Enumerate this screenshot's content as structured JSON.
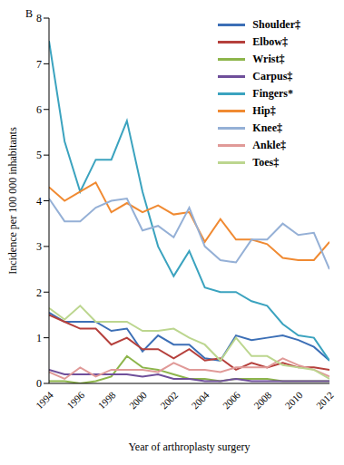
{
  "chart_data": {
    "type": "line",
    "title": "B",
    "x_label": "Year of arthroplasty surgery",
    "y_label": "Incidence per 100 000 inhabitants",
    "x": [
      1994,
      1995,
      1996,
      1997,
      1998,
      1999,
      2000,
      2001,
      2002,
      2003,
      2004,
      2005,
      2006,
      2007,
      2008,
      2009,
      2010,
      2011,
      2012
    ],
    "xlim": [
      1994,
      2012
    ],
    "xticks": [
      1994,
      1996,
      1998,
      2000,
      2002,
      2004,
      2006,
      2008,
      2010,
      2012
    ],
    "ylim": [
      0,
      8
    ],
    "yticks": [
      0,
      1,
      2,
      3,
      4,
      5,
      6,
      7,
      8
    ],
    "grid": false,
    "legend": "top-right",
    "series": [
      {
        "name": "Shoulder‡",
        "color": "#3c6fb6",
        "values": [
          1.55,
          1.35,
          1.35,
          1.35,
          1.15,
          1.2,
          0.7,
          1.05,
          0.85,
          0.85,
          0.55,
          0.5,
          1.05,
          0.95,
          1.0,
          1.05,
          0.95,
          0.8,
          0.5
        ]
      },
      {
        "name": "Elbow‡",
        "color": "#b5403c",
        "values": [
          1.5,
          1.35,
          1.2,
          1.2,
          0.85,
          1.0,
          0.75,
          0.75,
          0.55,
          0.75,
          0.5,
          0.55,
          0.3,
          0.45,
          0.35,
          0.45,
          0.35,
          0.35,
          0.3
        ]
      },
      {
        "name": "Wrist‡",
        "color": "#8db54b",
        "values": [
          0.05,
          0.05,
          0.0,
          0.05,
          0.15,
          0.6,
          0.35,
          0.3,
          0.2,
          0.1,
          0.1,
          0.05,
          0.1,
          0.1,
          0.1,
          0.05,
          0.05,
          0.05,
          0.05
        ]
      },
      {
        "name": "Carpus‡",
        "color": "#6f4f9a",
        "values": [
          0.3,
          0.2,
          0.2,
          0.2,
          0.2,
          0.2,
          0.15,
          0.2,
          0.1,
          0.1,
          0.05,
          0.05,
          0.1,
          0.05,
          0.05,
          0.05,
          0.05,
          0.05,
          0.05
        ]
      },
      {
        "name": "Fingers*",
        "color": "#3ba3bf",
        "values": [
          7.5,
          5.3,
          4.2,
          4.9,
          4.9,
          5.75,
          4.2,
          3.0,
          2.35,
          2.9,
          2.1,
          2.0,
          2.0,
          1.8,
          1.7,
          1.3,
          1.05,
          1.0,
          0.5
        ]
      },
      {
        "name": "Hip‡",
        "color": "#f08a32",
        "values": [
          4.3,
          4.0,
          4.2,
          4.4,
          3.75,
          3.95,
          3.75,
          3.9,
          3.7,
          3.75,
          3.1,
          3.6,
          3.15,
          3.15,
          3.05,
          2.75,
          2.7,
          2.7,
          3.1
        ]
      },
      {
        "name": "Knee‡",
        "color": "#95b0d6",
        "values": [
          4.05,
          3.55,
          3.55,
          3.85,
          4.0,
          4.05,
          3.35,
          3.45,
          3.2,
          3.85,
          3.0,
          2.7,
          2.65,
          3.15,
          3.15,
          3.5,
          3.25,
          3.3,
          2.5
        ]
      },
      {
        "name": "Ankle‡",
        "color": "#e09a98",
        "values": [
          0.25,
          0.1,
          0.35,
          0.15,
          0.3,
          0.3,
          0.3,
          0.25,
          0.45,
          0.3,
          0.3,
          0.25,
          0.35,
          0.35,
          0.35,
          0.55,
          0.4,
          0.3,
          0.15
        ]
      },
      {
        "name": "Toes‡",
        "color": "#bcd68f",
        "values": [
          1.65,
          1.4,
          1.7,
          1.35,
          1.35,
          1.35,
          1.15,
          1.15,
          1.2,
          1.0,
          0.85,
          0.5,
          1.0,
          0.6,
          0.6,
          0.4,
          0.35,
          0.3,
          0.1
        ]
      }
    ]
  }
}
